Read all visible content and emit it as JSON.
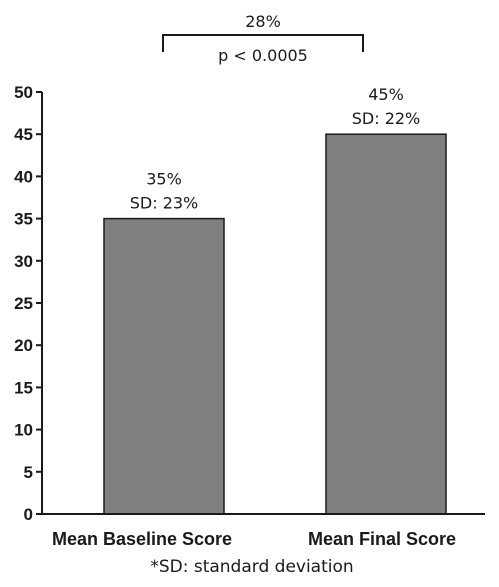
{
  "chart_data": {
    "type": "bar",
    "categories": [
      "Mean Baseline Score",
      "Mean Final Score"
    ],
    "values": [
      35,
      45
    ],
    "data_labels": [
      {
        "value": "35%",
        "sd": "SD: 23%"
      },
      {
        "value": "45%",
        "sd": "SD: 22%"
      }
    ],
    "ylim": [
      0,
      50
    ],
    "yticks": [
      "0",
      "5",
      "10",
      "15",
      "20",
      "25",
      "30",
      "35",
      "40",
      "45",
      "50"
    ],
    "grid": false,
    "bar_color": "#808080",
    "comparison": {
      "difference": "28%",
      "p_value": "p < 0.0005"
    },
    "footnote": "*SD: standard deviation"
  }
}
